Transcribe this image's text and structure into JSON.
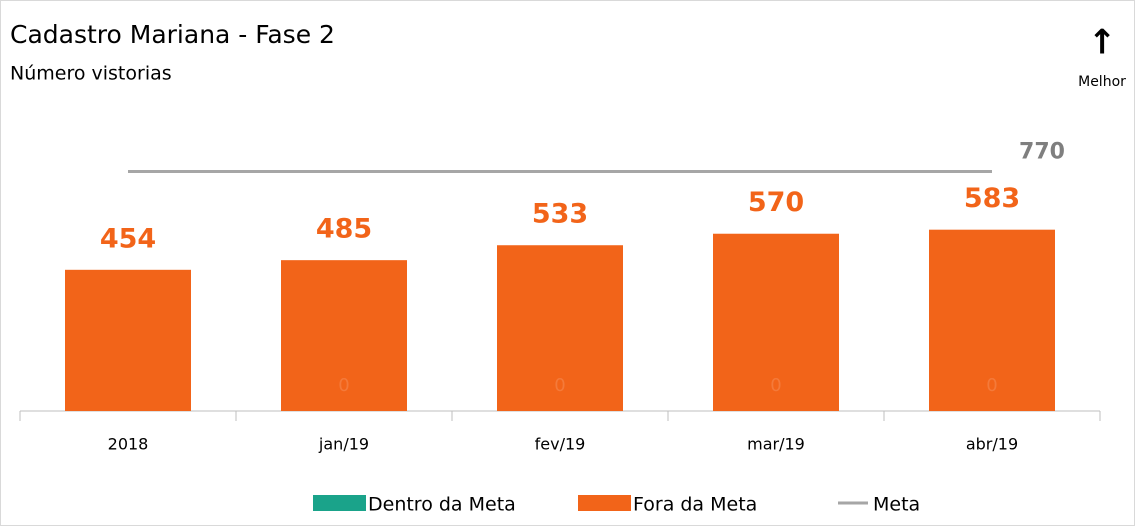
{
  "chart_data": {
    "type": "bar",
    "title": "Cadastro Mariana  - Fase 2",
    "subtitle": "Número vistorias",
    "annotations": {
      "arrow": "↑",
      "text": "Melhor"
    },
    "categories": [
      "2018",
      "jan/19",
      "fev/19",
      "mar/19",
      "abr/19"
    ],
    "ylim": [
      0,
      1000
    ],
    "legend": "bottom",
    "series": [
      {
        "name": "Dentro da Meta",
        "color": "#1aa38a",
        "values": [
          null,
          0,
          0,
          0,
          0
        ]
      },
      {
        "name": "Fora da Meta",
        "color": "#f26419",
        "values": [
          454,
          485,
          533,
          570,
          583
        ]
      },
      {
        "name": "Meta",
        "color": "#a6a6a6",
        "type": "line",
        "values": [
          770,
          770,
          770,
          770,
          770
        ]
      }
    ]
  }
}
